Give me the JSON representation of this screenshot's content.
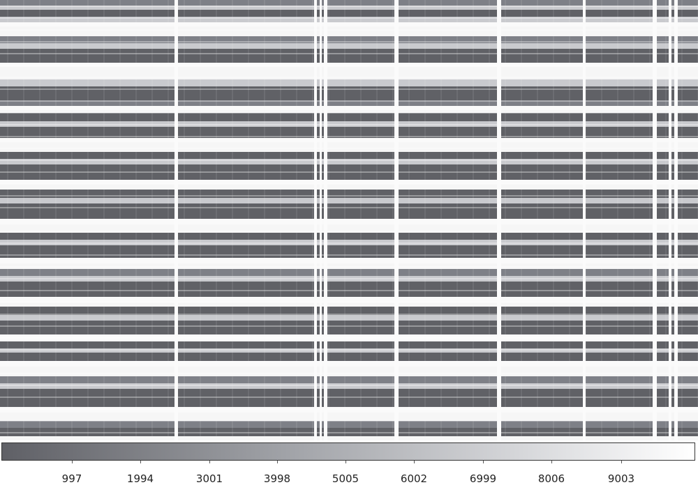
{
  "image": {
    "description_colors": {
      "dark": "#606166",
      "mid": "#7e8087",
      "light": "#c9cace",
      "white": "#fafafa"
    }
  },
  "colorbar": {
    "ticks": [
      "997",
      "1994",
      "3001",
      "3998",
      "5005",
      "6002",
      "6999",
      "8006",
      "9003"
    ]
  }
}
